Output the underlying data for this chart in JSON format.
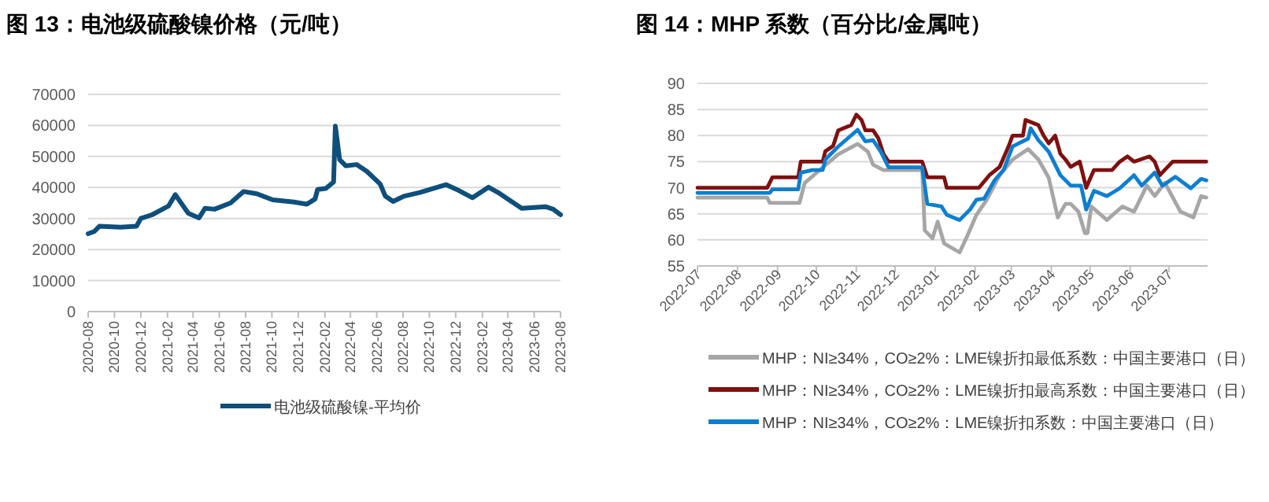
{
  "chart_data": [
    {
      "type": "line",
      "title": "图 13：电池级硫酸镍价格（元/吨）",
      "xlim": [
        "2020-08-01",
        "2023-08-01"
      ],
      "ylim": [
        0,
        70000
      ],
      "yticks": [
        0,
        10000,
        20000,
        30000,
        40000,
        50000,
        60000,
        70000
      ],
      "xticks": [
        {
          "value": "2020-08-01",
          "label": "2020-08"
        },
        {
          "value": "2020-10-01",
          "label": "2020-10"
        },
        {
          "value": "2020-12-01",
          "label": "2020-12"
        },
        {
          "value": "2021-02-01",
          "label": "2021-02"
        },
        {
          "value": "2021-04-01",
          "label": "2021-04"
        },
        {
          "value": "2021-06-01",
          "label": "2021-06"
        },
        {
          "value": "2021-08-01",
          "label": "2021-08"
        },
        {
          "value": "2021-10-01",
          "label": "2021-10"
        },
        {
          "value": "2021-12-01",
          "label": "2021-12"
        },
        {
          "value": "2022-02-01",
          "label": "2022-02"
        },
        {
          "value": "2022-04-01",
          "label": "2022-04"
        },
        {
          "value": "2022-06-01",
          "label": "2022-06"
        },
        {
          "value": "2022-08-01",
          "label": "2022-08"
        },
        {
          "value": "2022-10-01",
          "label": "2022-10"
        },
        {
          "value": "2022-12-01",
          "label": "2022-12"
        },
        {
          "value": "2023-02-01",
          "label": "2023-02"
        },
        {
          "value": "2023-04-01",
          "label": "2023-04"
        },
        {
          "value": "2023-06-01",
          "label": "2023-06"
        },
        {
          "value": "2023-08-01",
          "label": "2023-08"
        }
      ],
      "grid": "y",
      "legend": "bottom",
      "marker": "none",
      "line_style": "solid",
      "series": [
        {
          "name": "电池级硫酸镍-平均价",
          "color": "#0e4f7c",
          "x": [
            "2020-08-01",
            "2020-08-15",
            "2020-08-27",
            "2020-10-15",
            "2020-11-21",
            "2020-12-01",
            "2020-12-27",
            "2021-02-03",
            "2021-02-19",
            "2021-03-21",
            "2021-04-15",
            "2021-04-29",
            "2021-05-21",
            "2021-06-27",
            "2021-07-27",
            "2021-08-27",
            "2021-10-03",
            "2021-11-21",
            "2021-12-21",
            "2022-01-09",
            "2022-01-15",
            "2022-02-03",
            "2022-02-21",
            "2022-02-25",
            "2022-03-07",
            "2022-03-21",
            "2022-04-15",
            "2022-05-09",
            "2022-06-09",
            "2022-06-21",
            "2022-07-09",
            "2022-08-03",
            "2022-09-09",
            "2022-11-09",
            "2022-12-03",
            "2023-01-09",
            "2023-02-15",
            "2023-03-09",
            "2023-05-03",
            "2023-06-27",
            "2023-07-15",
            "2023-08-01"
          ],
          "values": [
            25100,
            25800,
            27500,
            27200,
            27500,
            30000,
            31200,
            34000,
            37700,
            31700,
            30200,
            33300,
            33000,
            35000,
            38700,
            38000,
            36000,
            35300,
            34600,
            36300,
            39400,
            39700,
            41800,
            59800,
            49000,
            47000,
            47400,
            45200,
            41100,
            37200,
            35500,
            37200,
            38400,
            40900,
            39400,
            36700,
            40100,
            38400,
            33300,
            33800,
            33000,
            31200
          ]
        }
      ]
    },
    {
      "type": "line",
      "title": "图 14：MHP 系数（百分比/金属吨）",
      "xlim": [
        "2022-07-01",
        "2023-07-31"
      ],
      "ylim": [
        55,
        90
      ],
      "yticks": [
        55,
        60,
        65,
        70,
        75,
        80,
        85,
        90
      ],
      "xticks": [
        {
          "value": "2022-07-01",
          "label": "2022-07"
        },
        {
          "value": "2022-08-01",
          "label": "2022-08"
        },
        {
          "value": "2022-09-01",
          "label": "2022-09"
        },
        {
          "value": "2022-10-01",
          "label": "2022-10"
        },
        {
          "value": "2022-11-01",
          "label": "2022-11"
        },
        {
          "value": "2022-12-01",
          "label": "2022-12"
        },
        {
          "value": "2023-01-01",
          "label": "2023-01"
        },
        {
          "value": "2023-02-01",
          "label": "2023-02"
        },
        {
          "value": "2023-03-01",
          "label": "2023-03"
        },
        {
          "value": "2023-04-01",
          "label": "2023-04"
        },
        {
          "value": "2023-05-01",
          "label": "2023-05"
        },
        {
          "value": "2023-06-01",
          "label": "2023-06"
        },
        {
          "value": "2023-07-01",
          "label": "2023-07"
        }
      ],
      "grid": "y",
      "legend": "bottom",
      "marker": "none",
      "line_style": "solid",
      "series": [
        {
          "name": "MHP：NI≥34%，CO≥2%：LME镍折扣最低系数：中国主要港口（日）",
          "color": "#a6a6a6",
          "x": [
            "2022-07-01",
            "2022-08-24",
            "2022-08-26",
            "2022-09-18",
            "2022-09-22",
            "2022-10-06",
            "2022-10-18",
            "2022-11-02",
            "2022-11-10",
            "2022-11-14",
            "2022-11-22",
            "2022-12-22",
            "2022-12-24",
            "2022-12-30",
            "2023-01-03",
            "2023-01-08",
            "2023-01-20",
            "2023-01-26",
            "2023-02-02",
            "2023-02-10",
            "2023-02-20",
            "2023-03-02",
            "2023-03-14",
            "2023-03-22",
            "2023-03-30",
            "2023-04-06",
            "2023-04-12",
            "2023-04-16",
            "2023-04-22",
            "2023-04-27",
            "2023-04-29",
            "2023-05-02",
            "2023-05-14",
            "2023-05-26",
            "2023-06-04",
            "2023-06-14",
            "2023-06-20",
            "2023-06-28",
            "2023-07-10",
            "2023-07-20",
            "2023-07-26",
            "2023-07-30"
          ],
          "values": [
            68.1,
            68.1,
            67.1,
            67.1,
            70.9,
            73.9,
            76.4,
            78.4,
            76.9,
            74.4,
            73.4,
            73.4,
            61.8,
            60.3,
            63.5,
            59.3,
            57.6,
            60.8,
            64.8,
            67.7,
            72.4,
            75.4,
            77.4,
            75.4,
            71.9,
            64.3,
            66.9,
            66.9,
            65.4,
            61.3,
            61.3,
            66.4,
            63.8,
            66.4,
            65.4,
            70.4,
            68.4,
            70.9,
            65.4,
            64.3,
            68.4,
            68.1
          ]
        },
        {
          "name": "MHP：NI≥34%，CO≥2%：LME镍折扣最高系数：中国主要港口（日）",
          "color": "#7f1010",
          "x": [
            "2022-07-01",
            "2022-08-24",
            "2022-08-28",
            "2022-09-17",
            "2022-09-19",
            "2022-10-06",
            "2022-10-08",
            "2022-10-14",
            "2022-10-18",
            "2022-10-28",
            "2022-11-01",
            "2022-11-05",
            "2022-11-08",
            "2022-11-14",
            "2022-11-18",
            "2022-11-22",
            "2022-11-26",
            "2022-12-22",
            "2022-12-26",
            "2023-01-08",
            "2023-01-10",
            "2023-02-04",
            "2023-02-12",
            "2023-02-20",
            "2023-02-27",
            "2023-03-02",
            "2023-03-10",
            "2023-03-12",
            "2023-03-22",
            "2023-03-26",
            "2023-03-30",
            "2023-04-04",
            "2023-04-08",
            "2023-04-12",
            "2023-04-16",
            "2023-04-23",
            "2023-04-28",
            "2023-05-04",
            "2023-05-18",
            "2023-05-24",
            "2023-05-30",
            "2023-06-04",
            "2023-06-16",
            "2023-06-20",
            "2023-06-24",
            "2023-07-04",
            "2023-07-30"
          ],
          "values": [
            70,
            70,
            72,
            72,
            75,
            75,
            77,
            78,
            81,
            82,
            84,
            83,
            81,
            81,
            79.5,
            76.5,
            75,
            75,
            72,
            72,
            70,
            70,
            72.4,
            74,
            78,
            80,
            80,
            83,
            82,
            80,
            78.5,
            80,
            76.5,
            75.4,
            74,
            75,
            70,
            73.4,
            73.4,
            75,
            76,
            75,
            76,
            75,
            72.4,
            75,
            75
          ]
        },
        {
          "name": "MHP：NI≥34%，CO≥2%：LME镍折扣系数：中国主要港口（日）",
          "color": "#0d7fd0",
          "x": [
            "2022-07-01",
            "2022-08-26",
            "2022-08-28",
            "2022-09-17",
            "2022-09-19",
            "2022-09-28",
            "2022-10-06",
            "2022-10-08",
            "2022-10-18",
            "2022-11-02",
            "2022-11-08",
            "2022-11-14",
            "2022-11-20",
            "2022-11-26",
            "2022-12-22",
            "2022-12-26",
            "2023-01-06",
            "2023-01-10",
            "2023-01-20",
            "2023-01-28",
            "2023-02-02",
            "2023-02-08",
            "2023-02-16",
            "2023-02-23",
            "2023-03-02",
            "2023-03-14",
            "2023-03-16",
            "2023-03-22",
            "2023-03-30",
            "2023-04-08",
            "2023-04-16",
            "2023-04-24",
            "2023-04-28",
            "2023-05-04",
            "2023-05-14",
            "2023-05-24",
            "2023-06-04",
            "2023-06-10",
            "2023-06-20",
            "2023-06-26",
            "2023-07-06",
            "2023-07-18",
            "2023-07-26",
            "2023-07-30"
          ],
          "values": [
            69,
            69,
            69.7,
            69.7,
            72.9,
            73.4,
            73.4,
            75.4,
            77.9,
            81.1,
            78.9,
            79.1,
            76.9,
            73.9,
            73.9,
            66.9,
            66.4,
            64.8,
            63.8,
            65.8,
            67.7,
            67.9,
            71.4,
            73.4,
            77.9,
            79.4,
            81.4,
            79.1,
            76.9,
            72.4,
            70.4,
            70.4,
            65.8,
            69.4,
            68.4,
            69.9,
            72.4,
            70.4,
            72.9,
            70.4,
            72.1,
            69.9,
            71.7,
            71.4
          ]
        }
      ]
    }
  ]
}
